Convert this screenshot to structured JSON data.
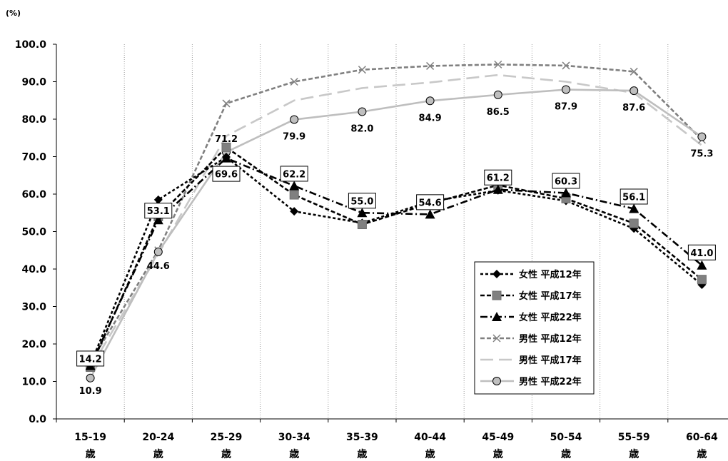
{
  "chart_data": {
    "type": "line",
    "unit_label": "(%)",
    "ylim": [
      0,
      100
    ],
    "y_ticks": [
      "0.0",
      "10.0",
      "20.0",
      "30.0",
      "40.0",
      "50.0",
      "60.0",
      "70.0",
      "80.0",
      "90.0",
      "100.0"
    ],
    "categories": [
      "15-19",
      "20-24",
      "25-29",
      "30-34",
      "35-39",
      "40-44",
      "45-49",
      "50-54",
      "55-59",
      "60-64"
    ],
    "category_suffix": "歳",
    "legend_position": "right-middle",
    "series": [
      {
        "name": "女性 平成12年",
        "color": "#000000",
        "dash": "4,3",
        "marker": "diamond",
        "values": [
          14.5,
          58.5,
          69.9,
          55.4,
          52.3,
          58.0,
          61.0,
          58.2,
          50.8,
          35.8
        ]
      },
      {
        "name": "女性 平成17年",
        "color": "#000000",
        "dash": "6,3",
        "marker": "square",
        "values": [
          13.8,
          54.0,
          72.5,
          59.8,
          51.9,
          57.5,
          62.4,
          58.8,
          52.2,
          37.2
        ]
      },
      {
        "name": "女性 平成22年",
        "color": "#000000",
        "dash": "10,4,2,4",
        "marker": "triangle",
        "values": [
          14.2,
          53.1,
          69.6,
          62.2,
          55.0,
          54.6,
          61.2,
          60.3,
          56.1,
          41.0
        ]
      },
      {
        "name": "男性 平成12年",
        "color": "#808080",
        "dash": "6,3",
        "marker": "x",
        "values": [
          15.0,
          45.0,
          84.2,
          90.0,
          93.2,
          94.2,
          94.6,
          94.3,
          92.7,
          74.5
        ]
      },
      {
        "name": "男性 平成17年",
        "color": "#c8c8c8",
        "dash": "18,8",
        "marker": "none",
        "values": [
          13.5,
          44.0,
          75.5,
          85.0,
          88.3,
          89.8,
          91.8,
          90.0,
          87.0,
          73.0
        ]
      },
      {
        "name": "男性 平成22年",
        "color": "#bebebe",
        "dash": "",
        "marker": "circle",
        "values": [
          10.9,
          44.6,
          71.2,
          79.9,
          82.0,
          84.9,
          86.5,
          87.9,
          87.6,
          75.3
        ]
      }
    ],
    "boxed_labels": [
      "14.2",
      "53.1",
      "69.6",
      "62.2",
      "55.0",
      "54.6",
      "61.2",
      "60.3",
      "56.1",
      "41.0"
    ],
    "plain_labels": [
      "10.9",
      "44.6",
      "71.2",
      "79.9",
      "82.0",
      "84.9",
      "86.5",
      "87.9",
      "87.6",
      "75.3"
    ]
  }
}
